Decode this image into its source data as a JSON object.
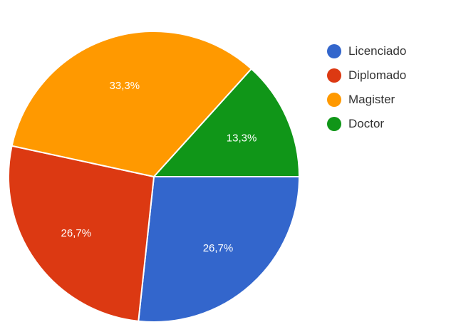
{
  "chart_data": {
    "type": "pie",
    "categories": [
      "Licenciado",
      "Diplomado",
      "Magister",
      "Doctor"
    ],
    "values": [
      26.7,
      26.7,
      33.3,
      13.3
    ],
    "value_labels": [
      "26,7%",
      "26,7%",
      "33,3%",
      "13,3%"
    ],
    "colors": [
      "#3366cc",
      "#dc3912",
      "#ff9900",
      "#109618"
    ],
    "legend_position": "right",
    "title": ""
  }
}
